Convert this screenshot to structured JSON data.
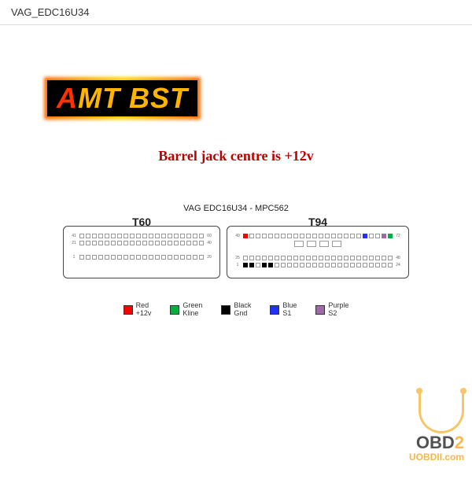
{
  "header": {
    "title": "VAG_EDC16U34"
  },
  "logo": {
    "first": "A",
    "rest": "MT BST"
  },
  "notice": "Barrel jack centre is +12v",
  "diagram": {
    "title": "VAG EDC16U34 - MPC562",
    "connectors": {
      "left": {
        "label": "T60",
        "rows": [
          {
            "start": 41,
            "end": 60,
            "dir": "ltr"
          },
          {
            "start": 21,
            "end": 40,
            "dir": "ltr"
          },
          {
            "start": 1,
            "end": 20,
            "dir": "ltr"
          }
        ],
        "gapAfterRow": 1,
        "highlightPins": {}
      },
      "right": {
        "label": "T94",
        "rows": [
          {
            "start": 49,
            "end": 72,
            "dir": "ltr"
          },
          {
            "start": 25,
            "end": 48,
            "dir": "ltr"
          },
          {
            "start": 1,
            "end": 24,
            "dir": "ltr"
          }
        ],
        "midRow": {
          "start": 73,
          "end": 76
        },
        "gapAfterRow": 0,
        "highlightPins": {
          "49": "#ff0000",
          "68": "#2030ff",
          "72": "#00b040",
          "1": "#000000",
          "2": "#000000",
          "4": "#000000",
          "5": "#000000",
          "71": "#a06aa8"
        }
      }
    }
  },
  "legend": [
    {
      "color": "#ff0000",
      "line1": "Red",
      "line2": "+12v"
    },
    {
      "color": "#00b040",
      "line1": "Green",
      "line2": "Kline"
    },
    {
      "color": "#000000",
      "line1": "Black",
      "line2": "Gnd"
    },
    {
      "color": "#2030ff",
      "line1": "Blue",
      "line2": "S1"
    },
    {
      "color": "#a06aa8",
      "line1": "Purple",
      "line2": "S2"
    }
  ],
  "watermark": {
    "brand1a": "OBD",
    "brand1b": "2",
    "brand2": "UOBDII.com"
  },
  "colors": {
    "notice": "#c00000",
    "border": "#444444",
    "pinBorder": "#999999",
    "bg": "#ffffff",
    "wmAccent": "#f7b030"
  }
}
